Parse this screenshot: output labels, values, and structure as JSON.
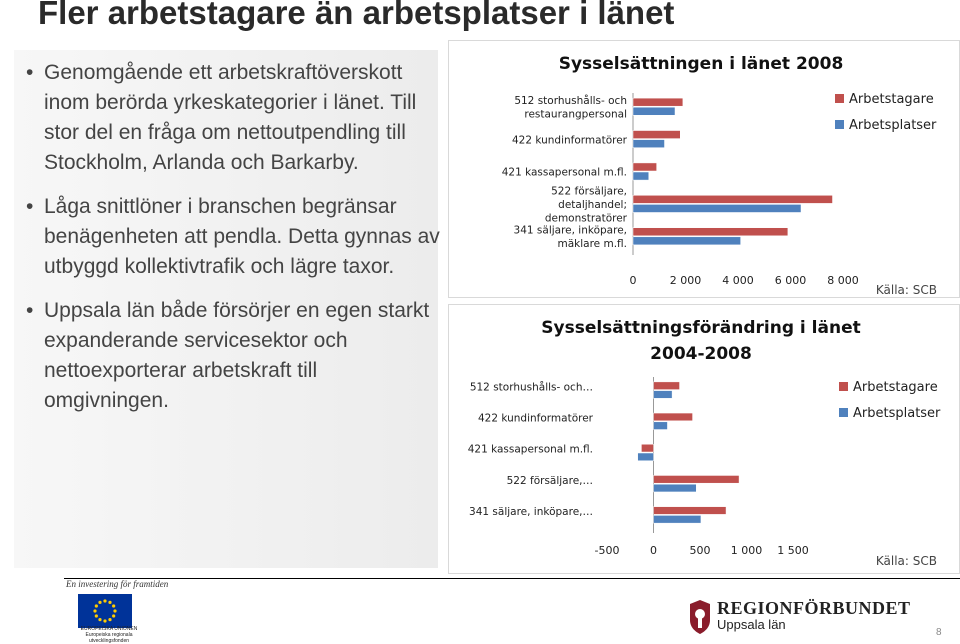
{
  "slide": {
    "title": "Fler arbetstagare än arbetsplatser i länet",
    "bullets": [
      "Genomgående ett arbetskraftöverskott inom berörda yrkeskategorier i länet. Till stor del en fråga om nettoutpendling till Stockholm, Arlanda och Barkarby.",
      "Låga snittlöner i branschen begränsar benägenheten att pendla. Detta gynnas av utbyggd kollektivtrafik och lägre taxor.",
      "Uppsala län både försörjer en egen starkt expanderande servicesektor och nettoexporterar arbetskraft till omgivningen."
    ],
    "bullet_glyph": "•",
    "page_number": "8"
  },
  "colors": {
    "arbetstagare": "#c0504d",
    "arbetsplatser": "#4f81bd"
  },
  "chart_data": [
    {
      "type": "bar",
      "orientation": "horizontal",
      "title": "Sysselsättningen i länet 2008",
      "categories": [
        "512 storhushålls- och restaurangpersonal",
        "422 kundinformatörer",
        "421 kassapersonal m.fl.",
        "522 försäljare, detaljhandel; demonstratörer",
        "341 säljare, inköpare, mäklare m.fl."
      ],
      "series": [
        {
          "name": "Arbetstagare",
          "values": [
            1900,
            1800,
            900,
            7600,
            5900
          ]
        },
        {
          "name": "Arbetsplatser",
          "values": [
            1600,
            1200,
            600,
            6400,
            4100
          ]
        }
      ],
      "xlim": [
        0,
        8000
      ],
      "xticks": [
        "0",
        "2 000",
        "4 000",
        "6 000",
        "8 000"
      ],
      "legend_position": "top-right",
      "source": "Källa: SCB"
    },
    {
      "type": "bar",
      "orientation": "horizontal",
      "title": "Sysselsättningsförändring i länet 2004-2008",
      "categories": [
        "512 storhushålls- och…",
        "422 kundinformatörer",
        "421 kassapersonal m.fl.",
        "522 försäljare,…",
        "341 säljare, inköpare,…"
      ],
      "series": [
        {
          "name": "Arbetstagare",
          "values": [
            280,
            420,
            -130,
            920,
            780
          ]
        },
        {
          "name": "Arbetsplatser",
          "values": [
            200,
            150,
            -170,
            460,
            510
          ]
        }
      ],
      "xlim": [
        -500,
        1500
      ],
      "xticks": [
        "-500",
        "0",
        "500",
        "1 000",
        "1 500"
      ],
      "legend_position": "top-right",
      "source": "Källa: SCB"
    }
  ],
  "footer": {
    "slogan": "En investering för framtiden",
    "eu_caption": "EUROPEISKA UNIONEN Europeiska regionala utvecklingsfonden",
    "org_name": "REGIONFÖRBUNDET",
    "org_sub": "Uppsala län"
  }
}
